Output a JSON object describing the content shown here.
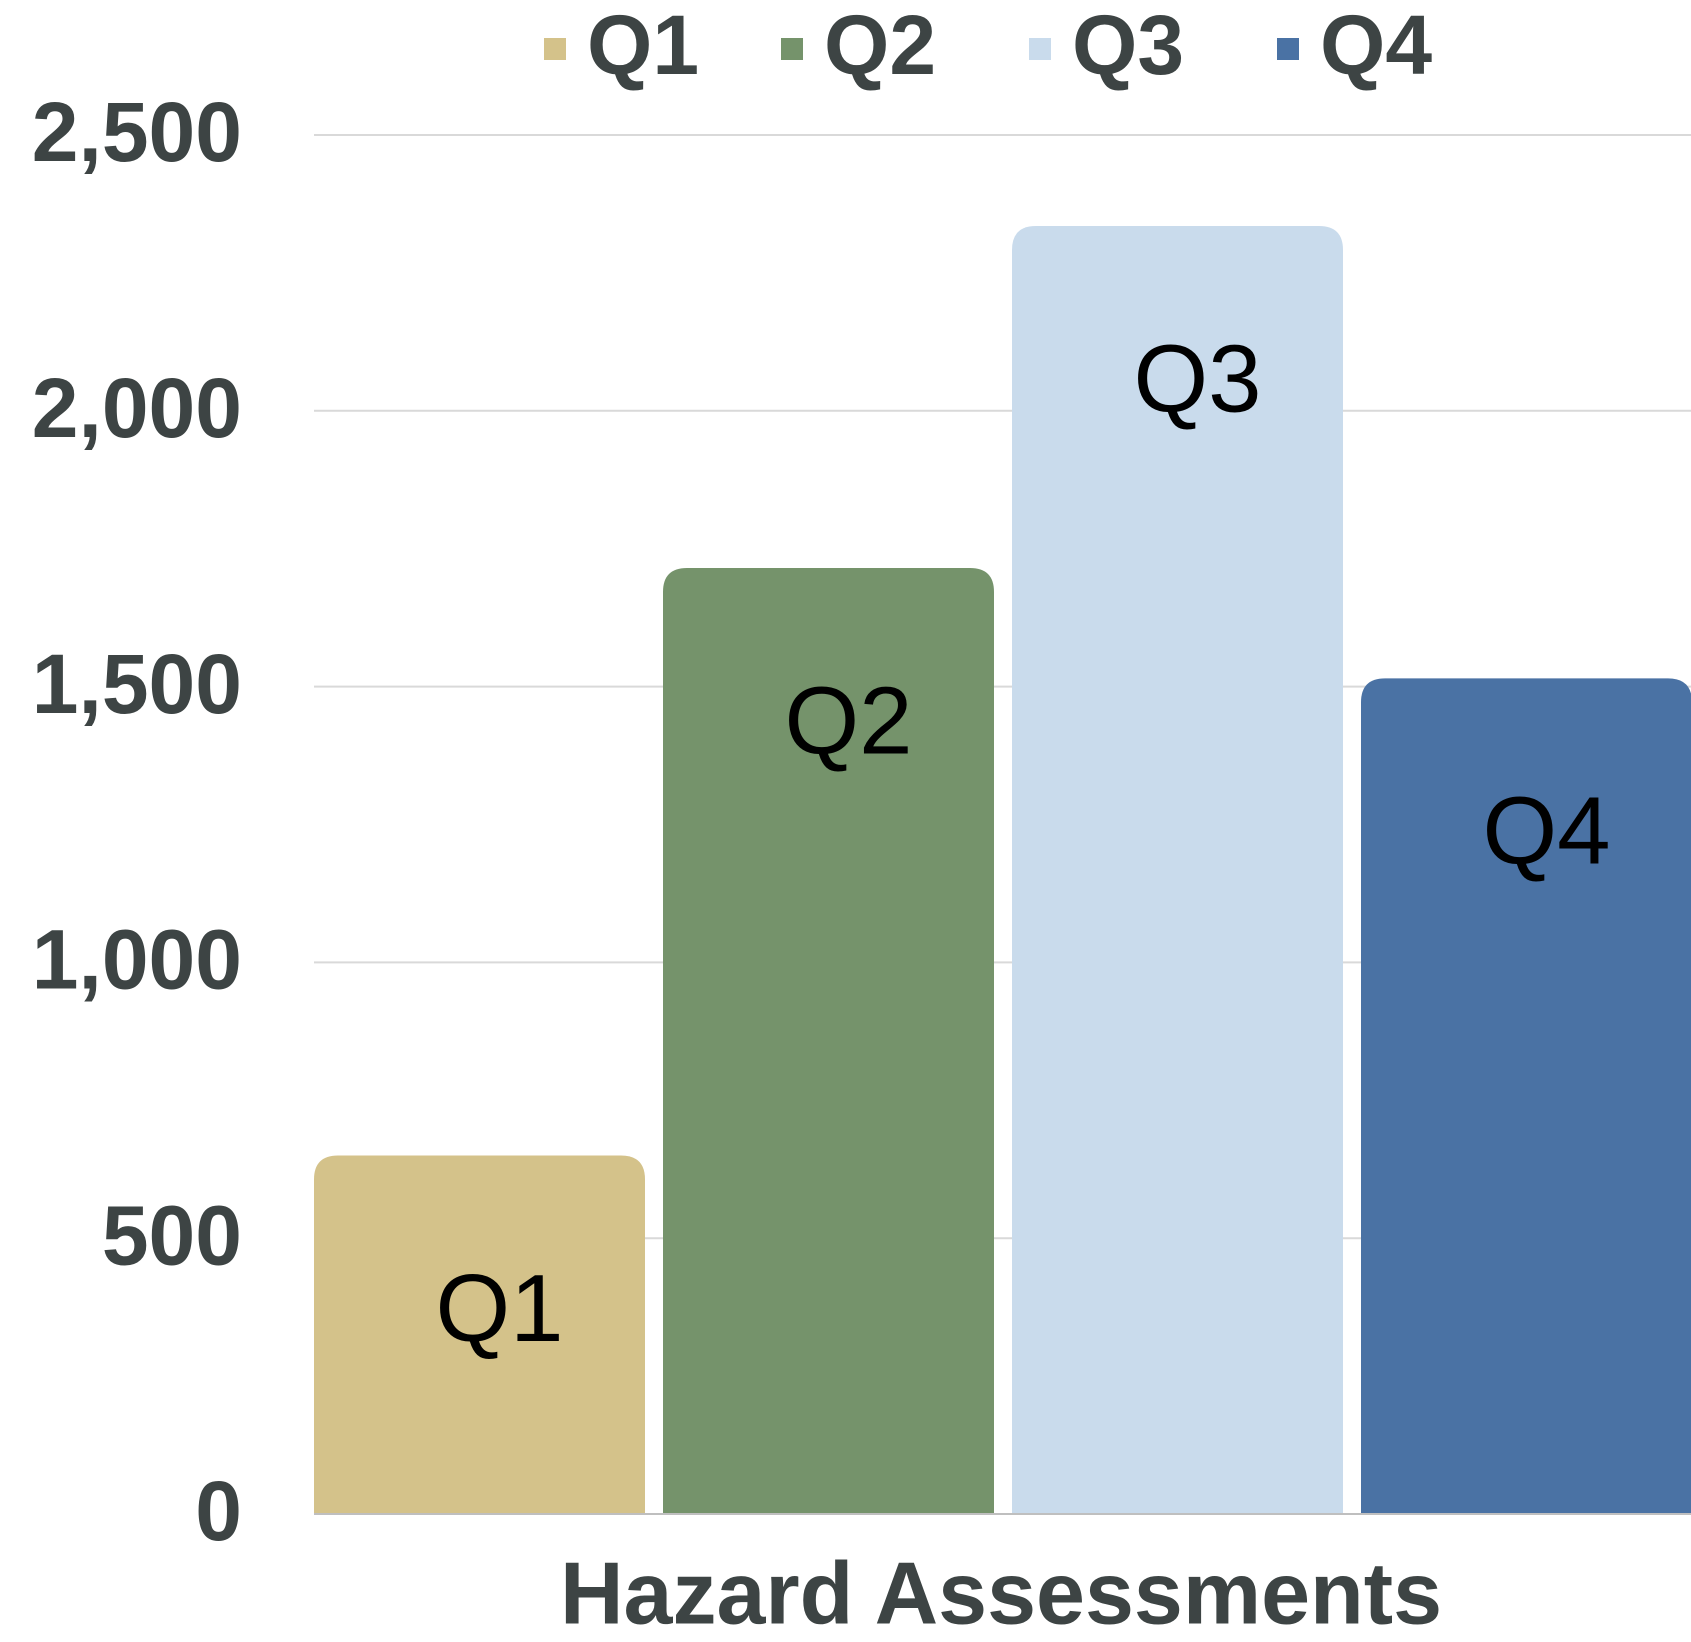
{
  "chart_data": {
    "type": "bar",
    "categories": [
      "Hazard Assessments"
    ],
    "series": [
      {
        "name": "Q1",
        "color": "#d4c28a",
        "values": [
          650
        ]
      },
      {
        "name": "Q2",
        "color": "#75936b",
        "values": [
          1715
        ]
      },
      {
        "name": "Q3",
        "color": "#c9dbec",
        "values": [
          2335
        ]
      },
      {
        "name": "Q4",
        "color": "#4a72a4",
        "values": [
          1515
        ]
      }
    ],
    "ylim": [
      0,
      2500
    ],
    "yticks": [
      0,
      500,
      {
        "value": 1000,
        "label": "1,000"
      },
      {
        "value": 1500,
        "label": "1,500"
      },
      {
        "value": 2000,
        "label": "2,000"
      },
      {
        "value": 2500,
        "label": "2,500"
      }
    ],
    "grid": true,
    "legend": "top",
    "data_labels": "series-name"
  }
}
